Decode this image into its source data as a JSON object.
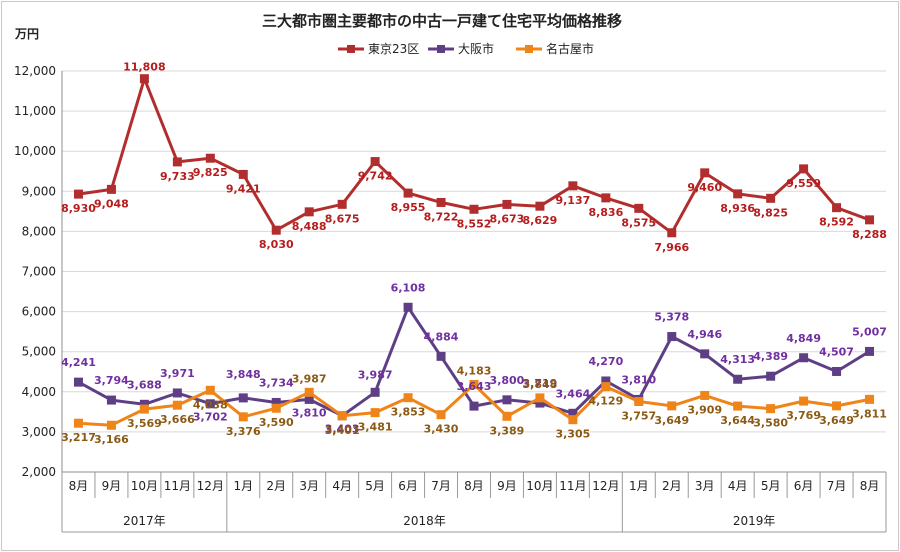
{
  "chart_data": {
    "type": "line",
    "title": "三大都市圏主要都市の中古一戸建て住宅平均価格推移",
    "unit_label": "万円",
    "ylim": [
      2000,
      12000
    ],
    "y_ticks": [
      2000,
      3000,
      4000,
      5000,
      6000,
      7000,
      8000,
      9000,
      10000,
      11000,
      12000
    ],
    "y_tick_labels": [
      "2,000",
      "3,000",
      "4,000",
      "5,000",
      "6,000",
      "7,000",
      "8,000",
      "9,000",
      "10,000",
      "11,000",
      "12,000"
    ],
    "categories": [
      "8月",
      "9月",
      "10月",
      "11月",
      "12月",
      "1月",
      "2月",
      "3月",
      "4月",
      "5月",
      "6月",
      "7月",
      "8月",
      "9月",
      "10月",
      "11月",
      "12月",
      "1月",
      "2月",
      "3月",
      "4月",
      "5月",
      "6月",
      "7月",
      "8月"
    ],
    "year_groups": [
      {
        "label": "2017年",
        "start": 0,
        "end": 4
      },
      {
        "label": "2018年",
        "start": 5,
        "end": 16
      },
      {
        "label": "2019年",
        "start": 17,
        "end": 24
      }
    ],
    "grid": true,
    "legend_position": "top-center",
    "series": [
      {
        "name": "東京23区",
        "color": "#b22e2e",
        "label_color": "#b71c1c",
        "values": [
          8930,
          9048,
          11808,
          9733,
          9825,
          9421,
          8030,
          8488,
          8675,
          9742,
          8955,
          8722,
          8552,
          8673,
          8629,
          9137,
          8836,
          8575,
          7966,
          9460,
          8936,
          8825,
          9559,
          8592,
          8288
        ],
        "labels": [
          "8,930",
          "9,048",
          "11,808",
          "9,733",
          "9,825",
          "9,421",
          "8,030",
          "8,488",
          "8,675",
          "9,742",
          "8,955",
          "8,722",
          "8,552",
          "8,673",
          "8,629",
          "9,137",
          "8,836",
          "8,575",
          "7,966",
          "9,460",
          "8,936",
          "8,825",
          "9,559",
          "8,592",
          "8,288"
        ]
      },
      {
        "name": "大阪市",
        "color": "#5e3f86",
        "label_color": "#7030a0",
        "values": [
          4241,
          3794,
          3688,
          3971,
          3702,
          3848,
          3734,
          3810,
          3403,
          3987,
          6108,
          4884,
          3643,
          3800,
          3719,
          3464,
          4270,
          3810,
          5378,
          4946,
          4313,
          4389,
          4849,
          4507,
          5007
        ],
        "labels": [
          "4,241",
          "3,794",
          "3,688",
          "3,971",
          "3,702",
          "3,848",
          "3,734",
          "3,810",
          "3,403",
          "3,987",
          "6,108",
          "4,884",
          "3,643",
          "3,800",
          "3,719",
          "3,464",
          "4,270",
          "3,810",
          "5,378",
          "4,946",
          "4,313",
          "4,389",
          "4,849",
          "4,507",
          "5,007"
        ]
      },
      {
        "name": "名古屋市",
        "color": "#ef8518",
        "label_color": "#8b5a14",
        "values": [
          3217,
          3166,
          3569,
          3666,
          4038,
          3376,
          3590,
          3987,
          3401,
          3481,
          3853,
          3430,
          4183,
          3389,
          3848,
          3305,
          4129,
          3757,
          3649,
          3909,
          3644,
          3580,
          3769,
          3649,
          3811
        ],
        "labels": [
          "3,217",
          "3,166",
          "3,569",
          "3,666",
          "4,038",
          "3,376",
          "3,590",
          "3,987",
          "3,401",
          "3,481",
          "3,853",
          "3,430",
          "4,183",
          "3,389",
          "3,848",
          "3,305",
          "4,129",
          "3,757",
          "3,649",
          "3,909",
          "3,644",
          "3,580",
          "3,769",
          "3,649",
          "3,811"
        ]
      }
    ]
  }
}
